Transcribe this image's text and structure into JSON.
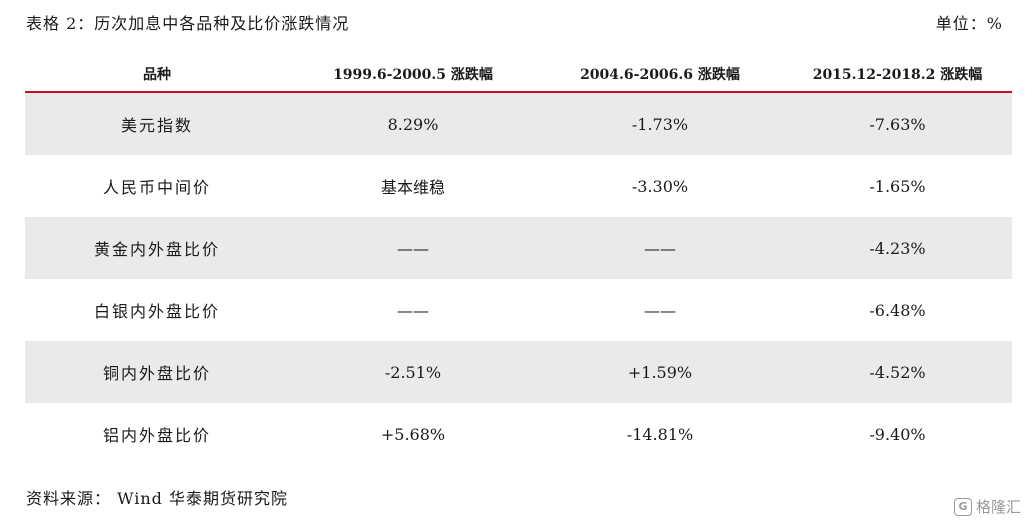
{
  "caption": "表格 2：历次加息中各品种及比价涨跌情况",
  "unit": "单位：%",
  "table": {
    "headers": [
      "品种",
      "1999.6-2000.5 涨跌幅",
      "2004.6-2006.6 涨跌幅",
      "2015.12-2018.2  涨跌幅"
    ],
    "rows": [
      [
        "美元指数",
        "8.29%",
        "-1.73%",
        "-7.63%"
      ],
      [
        "人民币中间价",
        "基本维稳",
        "-3.30%",
        "-1.65%"
      ],
      [
        "黄金内外盘比价",
        "——",
        "——",
        "-4.23%"
      ],
      [
        "白银内外盘比价",
        "——",
        "——",
        "-6.48%"
      ],
      [
        "铜内外盘比价",
        "-2.51%",
        "+1.59%",
        "-4.52%"
      ],
      [
        "铝内外盘比价",
        "+5.68%",
        "-14.81%",
        "-9.40%"
      ]
    ]
  },
  "source": "资料来源：  Wind 华泰期货研究院",
  "watermark": {
    "icon": "G",
    "text": "格隆汇"
  }
}
